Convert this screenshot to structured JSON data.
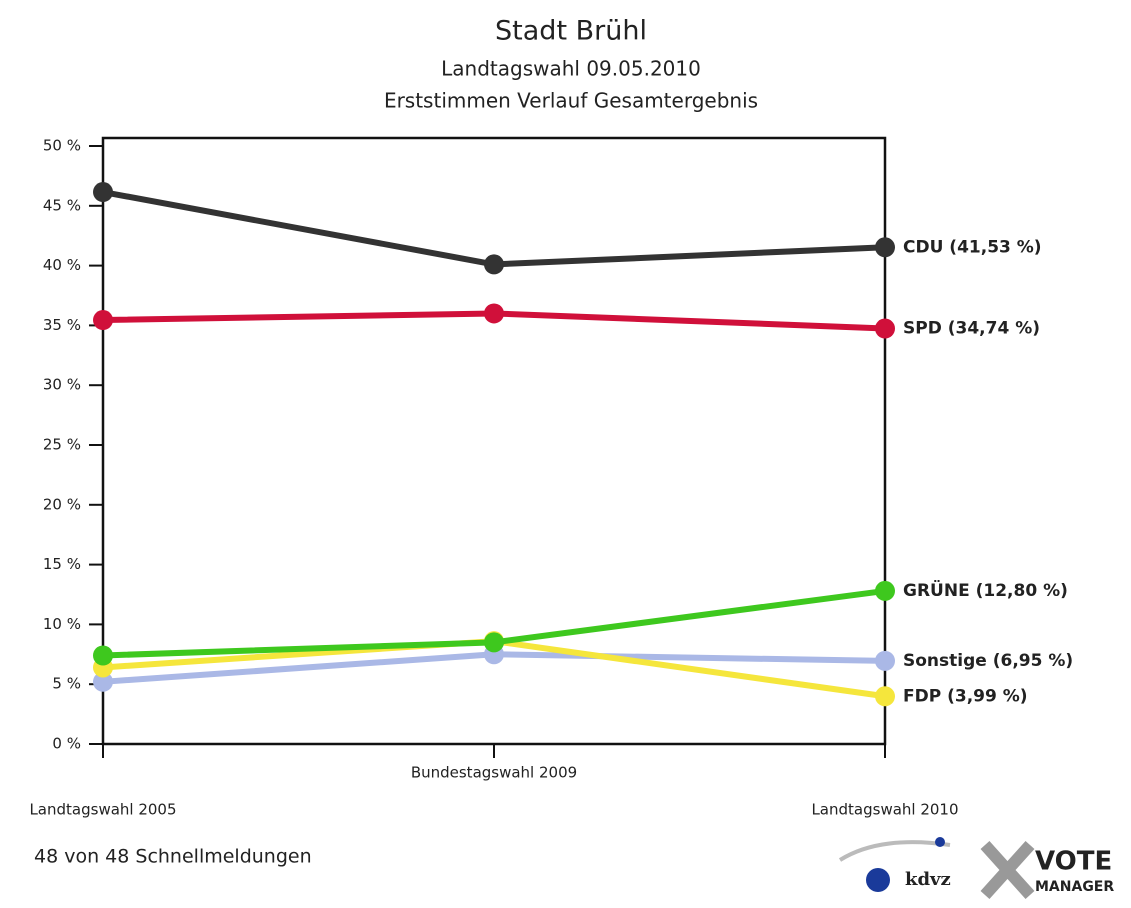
{
  "chart_data": {
    "type": "line",
    "title": "Stadt Brühl",
    "subtitle": "Landtagswahl 09.05.2010",
    "subtitle2": "Erststimmen Verlauf Gesamtergebnis",
    "categories": [
      "Landtagswahl 2005",
      "Bundestagswahl 2009",
      "Landtagswahl 2010"
    ],
    "series": [
      {
        "name": "CDU",
        "color": "#333333",
        "values": [
          46.15,
          40.1,
          41.53
        ],
        "value_labels": [
          null,
          null,
          "CDU (41,53 %)"
        ]
      },
      {
        "name": "SPD",
        "color": "#d0103a",
        "values": [
          35.45,
          36.0,
          34.74
        ],
        "value_labels": [
          null,
          null,
          "SPD (34,74 %)"
        ]
      },
      {
        "name": "Sonstige",
        "color": "#aab8e6",
        "values": [
          5.2,
          7.5,
          6.95
        ],
        "value_labels": [
          null,
          null,
          "Sonstige (6,95 %)"
        ]
      },
      {
        "name": "FDP",
        "color": "#f5e63c",
        "values": [
          6.4,
          8.6,
          3.99
        ],
        "value_labels": [
          null,
          null,
          "FDP (3,99 %)"
        ]
      },
      {
        "name": "GRÜNE",
        "color": "#3ec81e",
        "values": [
          7.4,
          8.5,
          12.8
        ],
        "value_labels": [
          null,
          null,
          "GRÜNE (12,80 %)"
        ]
      }
    ],
    "ylim": [
      0,
      50
    ],
    "yticks": [
      {
        "value": 0,
        "label": "0 %"
      },
      {
        "value": 5,
        "label": "5 %"
      },
      {
        "value": 10,
        "label": "10 %"
      },
      {
        "value": 15,
        "label": "15 %"
      },
      {
        "value": 20,
        "label": "20 %"
      },
      {
        "value": 25,
        "label": "25 %"
      },
      {
        "value": 30,
        "label": "30 %"
      },
      {
        "value": 35,
        "label": "35 %"
      },
      {
        "value": 40,
        "label": "40 %"
      },
      {
        "value": 45,
        "label": "45 %"
      },
      {
        "value": 50,
        "label": "50 %"
      }
    ],
    "footer": "48 von 48 Schnellmeldungen",
    "logo_texts": [
      "kdvz",
      "VOTE",
      "MANAGER"
    ]
  }
}
